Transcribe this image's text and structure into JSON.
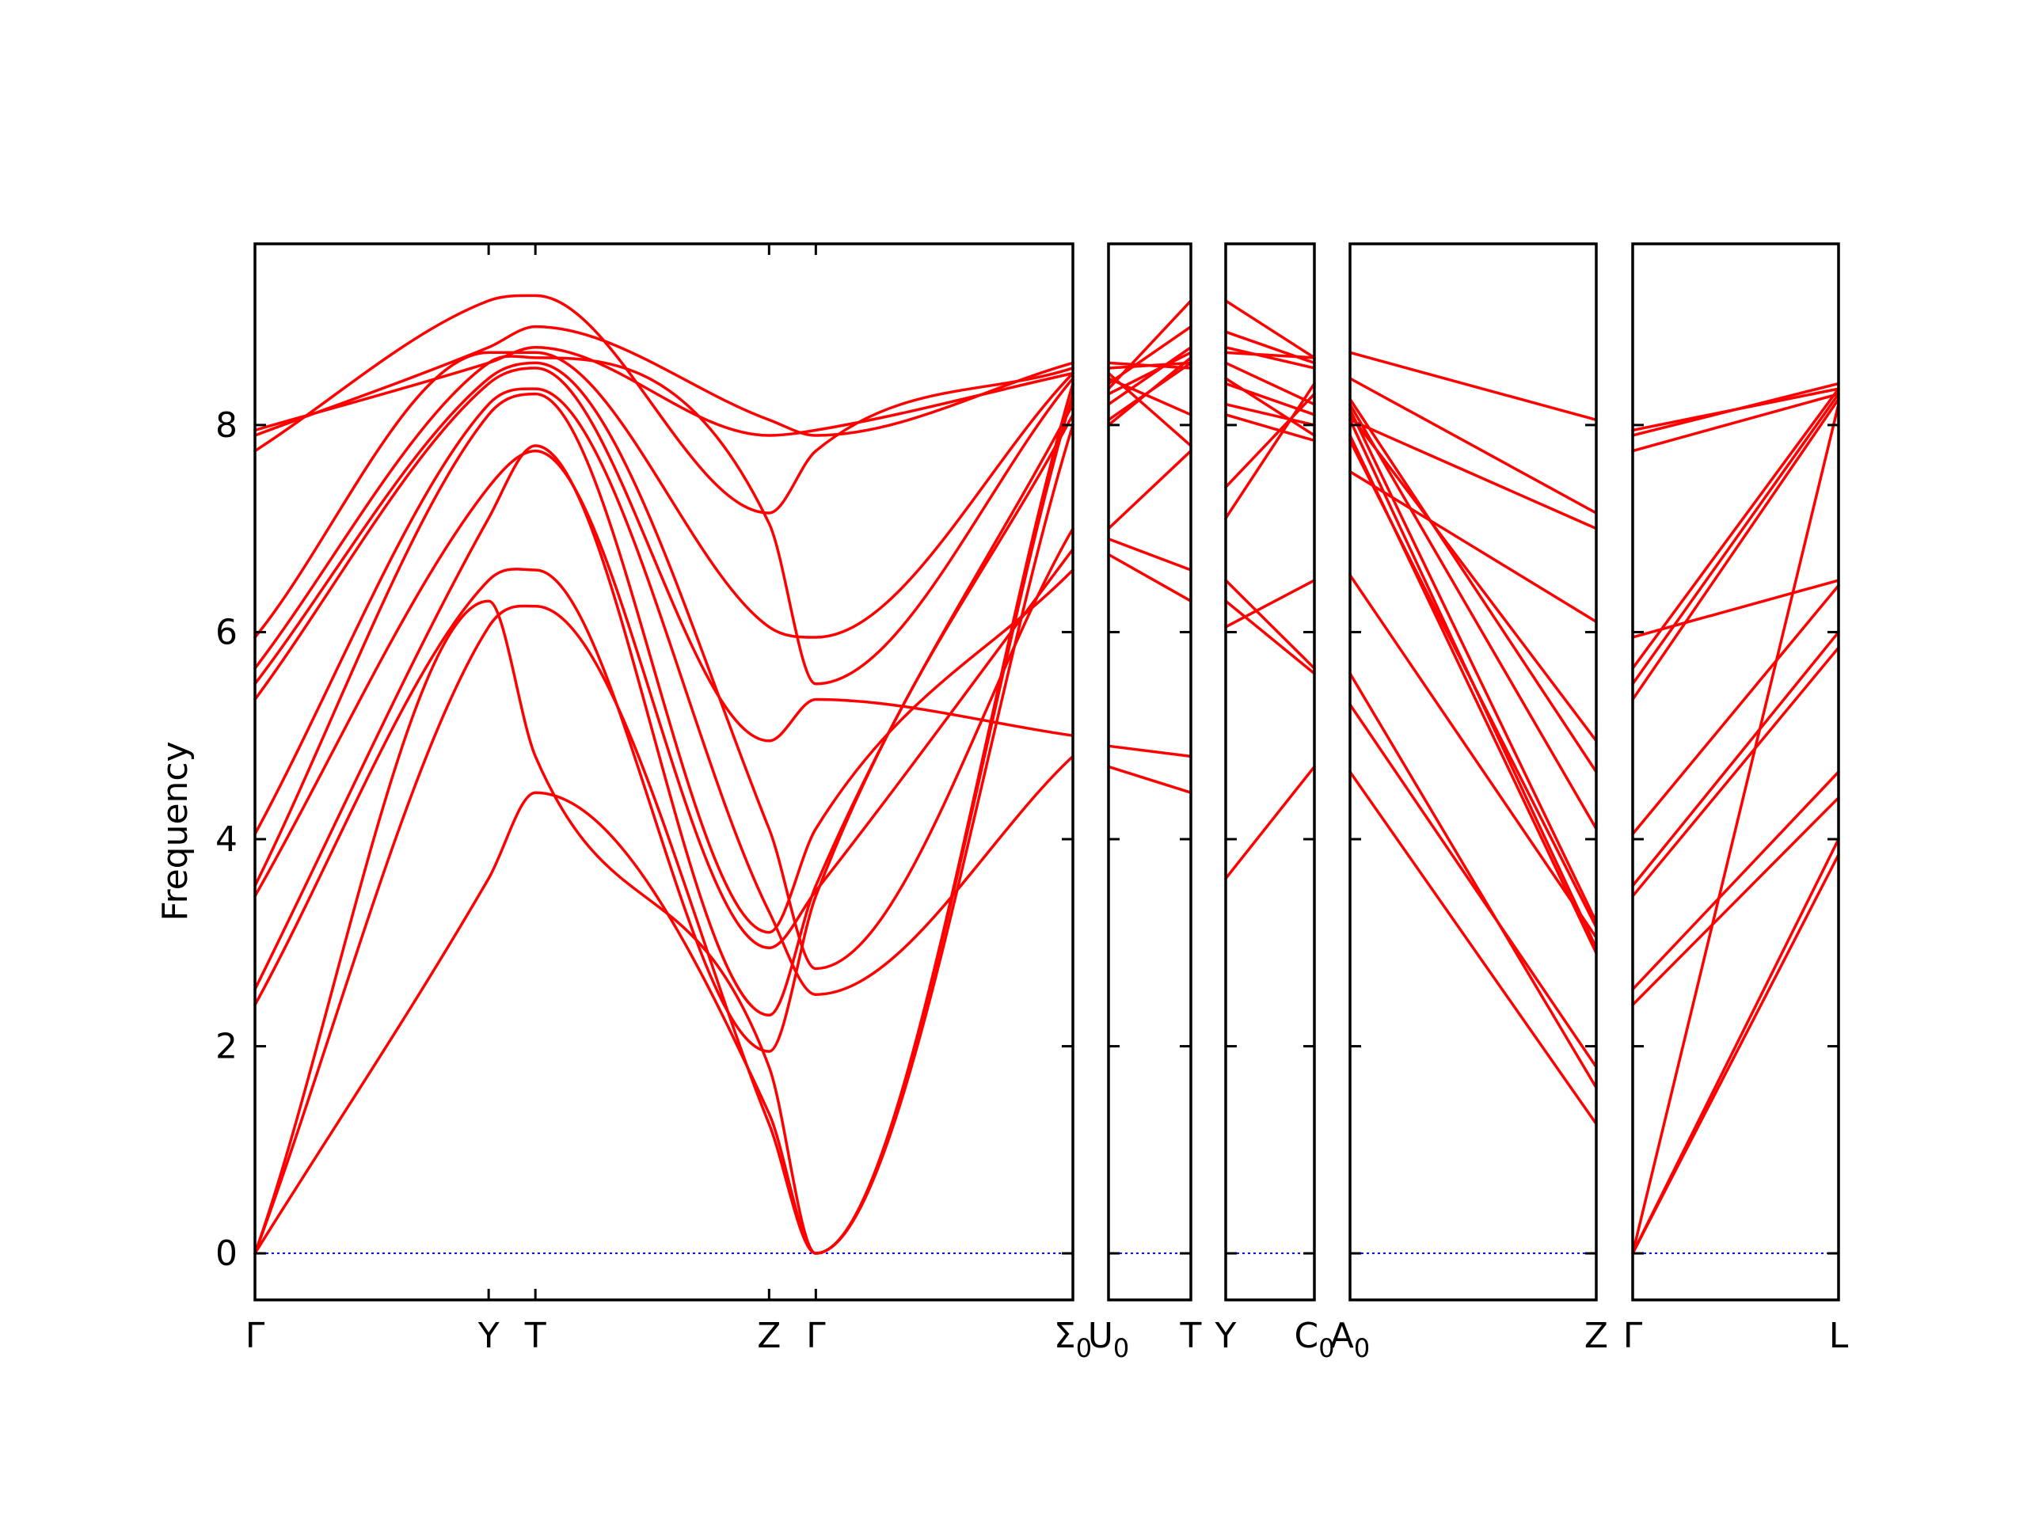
{
  "chart_data": {
    "type": "line",
    "title": "",
    "xlabel": "",
    "ylabel": "Frequency",
    "ylim": [
      -0.45,
      9.75
    ],
    "yticks": [
      0,
      2,
      4,
      6,
      8
    ],
    "grid": false,
    "colors": {
      "bands": "#ff0000",
      "zero_line": "#0000ff",
      "frame": "#000000"
    },
    "panels": [
      {
        "x": [
          0,
          1.0,
          1.2,
          2.2,
          2.4,
          3.5
        ],
        "xticks": [
          {
            "x": 0,
            "label": "Γ",
            "sub": ""
          },
          {
            "x": 1.0,
            "label": "Y",
            "sub": ""
          },
          {
            "x": 1.2,
            "label": "T",
            "sub": ""
          },
          {
            "x": 2.2,
            "label": "Z",
            "sub": ""
          },
          {
            "x": 2.4,
            "label": "Γ",
            "sub": ""
          },
          {
            "x": 3.5,
            "label": "Σ",
            "sub": "0"
          }
        ],
        "series": [
          {
            "values": [
              0,
              3.62,
              4.45,
              1.35,
              0,
              8.3
            ]
          },
          {
            "values": [
              0,
              6.05,
              6.25,
              1.25,
              0,
              8.0
            ]
          },
          {
            "values": [
              0,
              6.3,
              4.8,
              1.8,
              0,
              8.4
            ]
          },
          {
            "values": [
              2.4,
              6.5,
              6.6,
              1.95,
              3.45,
              8.1
            ]
          },
          {
            "values": [
              2.55,
              7.1,
              7.8,
              2.3,
              3.55,
              8.2
            ]
          },
          {
            "values": [
              3.45,
              7.4,
              7.75,
              2.95,
              3.5,
              6.8
            ]
          },
          {
            "values": [
              3.55,
              8.1,
              8.3,
              3.1,
              4.1,
              6.6
            ]
          },
          {
            "values": [
              4.05,
              8.2,
              8.35,
              3.3,
              2.5,
              4.8
            ]
          },
          {
            "values": [
              5.35,
              8.4,
              8.55,
              4.95,
              5.35,
              5.0
            ]
          },
          {
            "values": [
              5.5,
              8.45,
              8.6,
              4.1,
              2.75,
              7.0
            ]
          },
          {
            "values": [
              5.65,
              8.6,
              8.65,
              7.05,
              5.5,
              8.45
            ]
          },
          {
            "values": [
              5.95,
              8.7,
              8.7,
              6.05,
              5.95,
              8.5
            ]
          },
          {
            "values": [
              7.75,
              9.2,
              9.25,
              7.15,
              7.75,
              8.55
            ]
          },
          {
            "values": [
              7.9,
              8.75,
              8.95,
              8.05,
              7.9,
              8.6
            ]
          },
          {
            "values": [
              7.95,
              8.6,
              8.75,
              7.9,
              7.95,
              8.5
            ]
          }
        ]
      },
      {
        "x": [
          0,
          1.0
        ],
        "xticks": [
          {
            "x": 0,
            "label": "U",
            "sub": "0"
          },
          {
            "x": 1.0,
            "label": "T",
            "sub": ""
          }
        ],
        "series": [
          {
            "values": [
              4.7,
              4.45
            ]
          },
          {
            "values": [
              4.9,
              4.8
            ]
          },
          {
            "values": [
              6.75,
              6.3
            ]
          },
          {
            "values": [
              6.9,
              6.6
            ]
          },
          {
            "values": [
              7.0,
              7.75
            ]
          },
          {
            "values": [
              8.0,
              8.65
            ]
          },
          {
            "values": [
              8.05,
              8.6
            ]
          },
          {
            "values": [
              8.2,
              8.75
            ]
          },
          {
            "values": [
              8.3,
              8.7
            ]
          },
          {
            "values": [
              8.35,
              9.2
            ]
          },
          {
            "values": [
              8.4,
              8.95
            ]
          },
          {
            "values": [
              8.45,
              8.1
            ]
          },
          {
            "values": [
              8.5,
              7.8
            ]
          },
          {
            "values": [
              8.55,
              8.6
            ]
          },
          {
            "values": [
              8.6,
              8.55
            ]
          }
        ]
      },
      {
        "x": [
          0,
          1.0
        ],
        "xticks": [
          {
            "x": 0,
            "label": "Y",
            "sub": ""
          },
          {
            "x": 1.0,
            "label": "C",
            "sub": "0"
          }
        ],
        "series": [
          {
            "values": [
              3.62,
              4.7
            ]
          },
          {
            "values": [
              6.05,
              6.5
            ]
          },
          {
            "values": [
              6.3,
              5.6
            ]
          },
          {
            "values": [
              6.5,
              5.65
            ]
          },
          {
            "values": [
              7.1,
              8.4
            ]
          },
          {
            "values": [
              7.4,
              8.3
            ]
          },
          {
            "values": [
              8.1,
              7.85
            ]
          },
          {
            "values": [
              8.2,
              8.0
            ]
          },
          {
            "values": [
              8.4,
              8.1
            ]
          },
          {
            "values": [
              8.45,
              7.9
            ]
          },
          {
            "values": [
              8.6,
              8.2
            ]
          },
          {
            "values": [
              8.7,
              8.65
            ]
          },
          {
            "values": [
              8.75,
              8.55
            ]
          },
          {
            "values": [
              8.9,
              8.6
            ]
          },
          {
            "values": [
              9.2,
              8.65
            ]
          }
        ]
      },
      {
        "x": [
          0,
          1.0
        ],
        "xticks": [
          {
            "x": 0,
            "label": "A",
            "sub": "0"
          },
          {
            "x": 1.0,
            "label": "Z",
            "sub": ""
          }
        ],
        "series": [
          {
            "values": [
              4.65,
              1.25
            ]
          },
          {
            "values": [
              5.3,
              1.8
            ]
          },
          {
            "values": [
              5.6,
              1.6
            ]
          },
          {
            "values": [
              6.55,
              3.05
            ]
          },
          {
            "values": [
              7.85,
              3.15
            ]
          },
          {
            "values": [
              7.9,
              2.9
            ]
          },
          {
            "values": [
              8.05,
              2.95
            ]
          },
          {
            "values": [
              8.15,
              3.2
            ]
          },
          {
            "values": [
              8.1,
              4.95
            ]
          },
          {
            "values": [
              8.2,
              4.1
            ]
          },
          {
            "values": [
              8.25,
              4.65
            ]
          },
          {
            "values": [
              7.55,
              6.1
            ]
          },
          {
            "values": [
              8.05,
              7.0
            ]
          },
          {
            "values": [
              8.45,
              7.15
            ]
          },
          {
            "values": [
              8.7,
              8.05
            ]
          }
        ]
      },
      {
        "x": [
          0,
          1.0
        ],
        "xticks": [
          {
            "x": 0,
            "label": "Γ",
            "sub": ""
          },
          {
            "x": 1.0,
            "label": "L",
            "sub": ""
          }
        ],
        "series": [
          {
            "values": [
              0,
              3.85
            ]
          },
          {
            "values": [
              0,
              4.0
            ]
          },
          {
            "values": [
              0,
              8.2
            ]
          },
          {
            "values": [
              2.4,
              4.4
            ]
          },
          {
            "values": [
              2.55,
              4.65
            ]
          },
          {
            "values": [
              3.45,
              5.85
            ]
          },
          {
            "values": [
              3.55,
              6.0
            ]
          },
          {
            "values": [
              4.05,
              6.45
            ]
          },
          {
            "values": [
              5.35,
              8.25
            ]
          },
          {
            "values": [
              5.5,
              8.3
            ]
          },
          {
            "values": [
              5.65,
              8.35
            ]
          },
          {
            "values": [
              5.95,
              6.5
            ]
          },
          {
            "values": [
              7.75,
              8.3
            ]
          },
          {
            "values": [
              7.9,
              8.4
            ]
          },
          {
            "values": [
              7.95,
              8.35
            ]
          }
        ]
      }
    ]
  }
}
